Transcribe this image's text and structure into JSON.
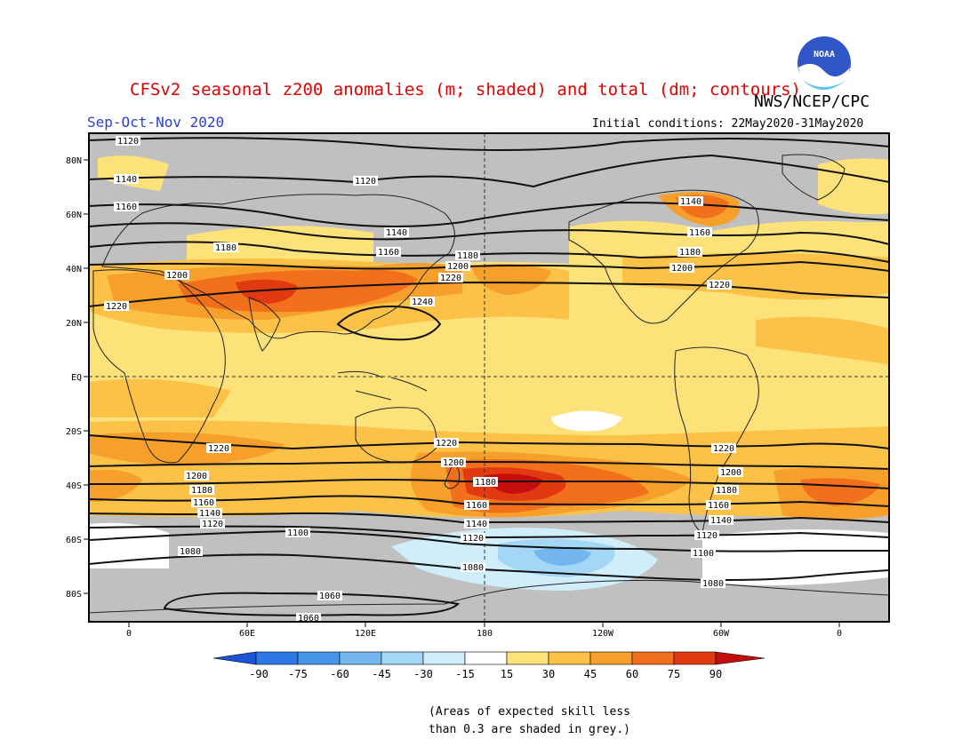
{
  "header": {
    "title": "CFSv2 seasonal z200 anomalies (m; shaded) and total (dm; contours)",
    "agency": "NWS/NCEP/CPC",
    "season": "Sep-Oct-Nov 2020",
    "initial_conditions": "Initial conditions: 22May2020-31May2020",
    "logo_text": "NOAA"
  },
  "map": {
    "lat_labels": [
      "80N",
      "60N",
      "40N",
      "20N",
      "EQ",
      "20S",
      "40S",
      "60S",
      "80S"
    ],
    "lon_labels": [
      "0",
      "60E",
      "120E",
      "180",
      "120W",
      "60W",
      "0"
    ],
    "contour_labels": [
      "1120",
      "1120",
      "1140",
      "1160",
      "1180",
      "1200",
      "1220",
      "1140",
      "1160",
      "1180",
      "1200",
      "1220",
      "1240",
      "1140",
      "1160",
      "1180",
      "1200",
      "1220",
      "1220",
      "1200",
      "1180",
      "1160",
      "1140",
      "1120",
      "1100",
      "1080",
      "1060",
      "1060",
      "1220",
      "1200",
      "1180",
      "1160",
      "1140",
      "1120",
      "1080",
      "1220",
      "1200",
      "1180",
      "1160",
      "1140",
      "1120",
      "1100",
      "1080"
    ],
    "colors": {
      "land_outline": "#222222",
      "low_skill": "#c0c0c0",
      "contour": "#111111"
    }
  },
  "colorbar": {
    "ticks": [
      "-90",
      "-75",
      "-60",
      "-45",
      "-30",
      "-15",
      "15",
      "30",
      "45",
      "60",
      "75",
      "90"
    ],
    "colors": [
      "#1a55d8",
      "#2d78e6",
      "#4896ea",
      "#74b6f0",
      "#a4d6f5",
      "#cfeefa",
      "#ffffff",
      "#fde27a",
      "#fbc247",
      "#f79f2b",
      "#f26f1c",
      "#e23a10",
      "#c40d0d"
    ]
  },
  "footnote": {
    "line1": "(Areas of expected skill less",
    "line2": "than 0.3 are shaded in grey.)"
  }
}
